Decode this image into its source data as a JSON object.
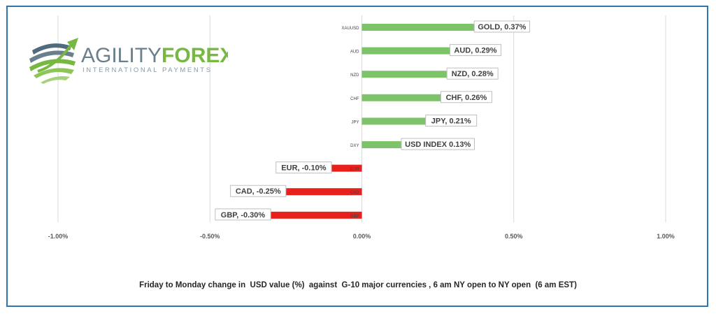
{
  "logo": {
    "name_part1": "AGILITY",
    "name_part2": "FOREX",
    "tagline": "INTERNATIONAL PAYMENTS",
    "primary_color": "#6a7f8e",
    "accent_color": "#77b843"
  },
  "caption": "Friday to Monday change in  USD value (%)  against  G-10 major currencies , 6 am NY open to NY open  (6 am EST)",
  "chart_data": {
    "type": "bar",
    "orientation": "horizontal",
    "categories": [
      "XAUUSD",
      "AUD",
      "NZD",
      "CHF",
      "JPY",
      "DXY",
      "EUR",
      "CAD",
      "GBP"
    ],
    "values": [
      0.37,
      0.29,
      0.28,
      0.26,
      0.21,
      0.13,
      -0.1,
      -0.25,
      -0.3
    ],
    "data_labels": [
      "GOLD, 0.37%",
      "AUD, 0.29%",
      "NZD, 0.28%",
      "CHF, 0.26%",
      "JPY, 0.21%",
      "USD INDEX 0.13%",
      "EUR, -0.10%",
      "CAD, -0.25%",
      "GBP, -0.30%"
    ],
    "x_ticks": [
      -1.0,
      -0.5,
      0.0,
      0.5,
      1.0
    ],
    "x_tick_labels": [
      "-1.00%",
      "-0.50%",
      "0.00%",
      "0.50%",
      "1.00%"
    ],
    "xlim": [
      -1.0,
      1.0
    ],
    "grid": "vertical",
    "positive_color": "#7cc36a",
    "negative_color": "#e8201d",
    "title": "",
    "xlabel": "",
    "ylabel": ""
  }
}
